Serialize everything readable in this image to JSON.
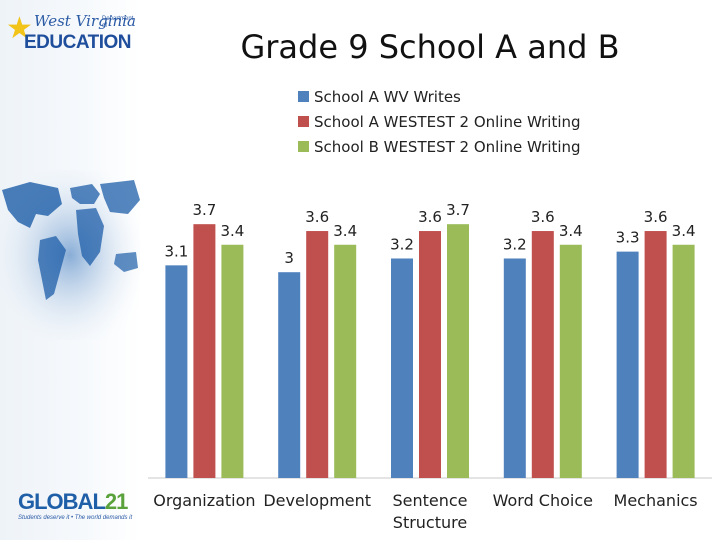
{
  "branding": {
    "wv_logo_top": "West Virginia",
    "wv_logo_dept": "Department of",
    "wv_logo_main": "EDUCATION",
    "global21_word": "GLOBAL",
    "global21_num": "21",
    "global21_tagline": "Students deserve it • The world demands it"
  },
  "colors": {
    "series_a_wv": "#4f81bd",
    "series_a_westest": "#c0504d",
    "series_b_westest": "#9bbb59"
  },
  "chart_data": {
    "type": "bar",
    "title": "Grade 9 School A and B",
    "categories": [
      [
        "Organization"
      ],
      [
        "Development"
      ],
      [
        "Sentence",
        "Structure"
      ],
      [
        "Word Choice"
      ],
      [
        "Mechanics"
      ]
    ],
    "series": [
      {
        "name": "School A WV Writes",
        "values": [
          3.1,
          3,
          3.2,
          3.2,
          3.3
        ],
        "labels": [
          "3.1",
          "3",
          "3.2",
          "3.2",
          "3.3"
        ]
      },
      {
        "name": "School A WESTEST 2 Online Writing",
        "values": [
          3.7,
          3.6,
          3.6,
          3.6,
          3.6
        ],
        "labels": [
          "3.7",
          "3.6",
          "3.6",
          "3.6",
          "3.6"
        ]
      },
      {
        "name": "School B WESTEST 2 Online Writing",
        "values": [
          3.4,
          3.4,
          3.7,
          3.4,
          3.4
        ],
        "labels": [
          "3.4",
          "3.4",
          "3.7",
          "3.4",
          "3.4"
        ]
      }
    ],
    "ylim": [
      0,
      4
    ],
    "grid": false,
    "legend": "top",
    "data_labels": true
  }
}
